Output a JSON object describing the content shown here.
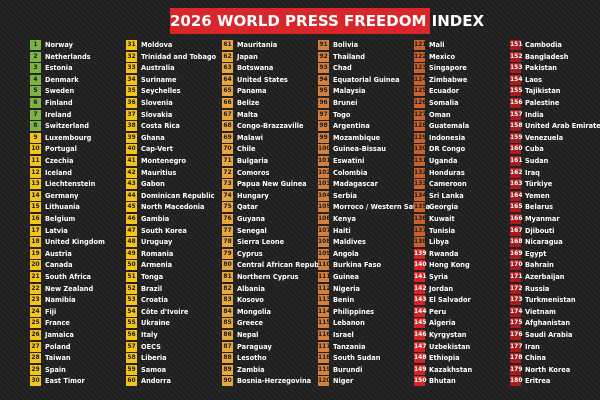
{
  "title": "2026 WORLD PRESS FREEDOM INDEX",
  "badge_colors": [
    {
      "from_rank": 1,
      "color": "#7cb342",
      "text": "#1a1a1a"
    },
    {
      "from_rank": 9,
      "color": "#f4c518",
      "text": "#1a1a1a"
    },
    {
      "from_rank": 61,
      "color": "#e9a53e",
      "text": "#1a1a1a"
    },
    {
      "from_rank": 91,
      "color": "#d5813c",
      "text": "#1a1a1a"
    },
    {
      "from_rank": 121,
      "color": "#c9622c",
      "text": "#1a1a1a"
    },
    {
      "from_rank": 139,
      "color": "#d42424",
      "text": "#ffffff"
    },
    {
      "from_rank": 151,
      "color": "#a81c1c",
      "text": "#ffffff"
    }
  ],
  "entries": [
    [
      1,
      "Norway"
    ],
    [
      2,
      "Netherlands"
    ],
    [
      3,
      "Estonia"
    ],
    [
      4,
      "Denmark"
    ],
    [
      5,
      "Sweden"
    ],
    [
      6,
      "Finland"
    ],
    [
      7,
      "Ireland"
    ],
    [
      8,
      "Switzerland"
    ],
    [
      9,
      "Luxembourg"
    ],
    [
      10,
      "Portugal"
    ],
    [
      11,
      "Czechia"
    ],
    [
      12,
      "Iceland"
    ],
    [
      13,
      "Liechtenstein"
    ],
    [
      14,
      "Germany"
    ],
    [
      15,
      "Lithuania"
    ],
    [
      16,
      "Belgium"
    ],
    [
      17,
      "Latvia"
    ],
    [
      18,
      "United Kingdom"
    ],
    [
      19,
      "Austria"
    ],
    [
      20,
      "Canada"
    ],
    [
      21,
      "South Africa"
    ],
    [
      22,
      "New Zealand"
    ],
    [
      23,
      "Namibia"
    ],
    [
      24,
      "Fiji"
    ],
    [
      25,
      "France"
    ],
    [
      26,
      "Jamaica"
    ],
    [
      27,
      "Poland"
    ],
    [
      28,
      "Taiwan"
    ],
    [
      29,
      "Spain"
    ],
    [
      30,
      "East Timor"
    ],
    [
      31,
      "Moldova"
    ],
    [
      32,
      "Trinidad and Tobago"
    ],
    [
      33,
      "Australia"
    ],
    [
      34,
      "Suriname"
    ],
    [
      35,
      "Seychelles"
    ],
    [
      36,
      "Slovenia"
    ],
    [
      37,
      "Slovakia"
    ],
    [
      38,
      "Costa Rica"
    ],
    [
      39,
      "Ghana"
    ],
    [
      40,
      "Cap-Vert"
    ],
    [
      41,
      "Montenegro"
    ],
    [
      42,
      "Mauritius"
    ],
    [
      43,
      "Gabon"
    ],
    [
      44,
      "Dominican Republic"
    ],
    [
      45,
      "North Macedonia"
    ],
    [
      46,
      "Gambia"
    ],
    [
      47,
      "South Korea"
    ],
    [
      48,
      "Uruguay"
    ],
    [
      49,
      "Romania"
    ],
    [
      50,
      "Armenia"
    ],
    [
      51,
      "Tonga"
    ],
    [
      52,
      "Brazil"
    ],
    [
      53,
      "Croatia"
    ],
    [
      54,
      "Côte d'Ivoire"
    ],
    [
      55,
      "Ukraine"
    ],
    [
      56,
      "Italy"
    ],
    [
      57,
      "OECS"
    ],
    [
      58,
      "Liberia"
    ],
    [
      59,
      "Samoa"
    ],
    [
      60,
      "Andorra"
    ],
    [
      61,
      "Mauritania"
    ],
    [
      62,
      "Japan"
    ],
    [
      63,
      "Botswana"
    ],
    [
      64,
      "United States"
    ],
    [
      65,
      "Panama"
    ],
    [
      66,
      "Belize"
    ],
    [
      67,
      "Malta"
    ],
    [
      68,
      "Congo-Brazzaville"
    ],
    [
      69,
      "Malawi"
    ],
    [
      70,
      "Chile"
    ],
    [
      71,
      "Bulgaria"
    ],
    [
      72,
      "Comoros"
    ],
    [
      73,
      "Papua New Guinea"
    ],
    [
      74,
      "Hungary"
    ],
    [
      75,
      "Qatar"
    ],
    [
      76,
      "Guyana"
    ],
    [
      77,
      "Senegal"
    ],
    [
      78,
      "Sierra Leone"
    ],
    [
      79,
      "Cyprus"
    ],
    [
      80,
      "Central African Republic"
    ],
    [
      81,
      "Northern Cyprus"
    ],
    [
      82,
      "Albania"
    ],
    [
      83,
      "Kosovo"
    ],
    [
      84,
      "Mongolia"
    ],
    [
      85,
      "Greece"
    ],
    [
      86,
      "Nepal"
    ],
    [
      87,
      "Paraguay"
    ],
    [
      88,
      "Lesotho"
    ],
    [
      89,
      "Zambia"
    ],
    [
      90,
      "Bosnia-Herzegovina"
    ],
    [
      91,
      "Bolivia"
    ],
    [
      92,
      "Thailand"
    ],
    [
      93,
      "Chad"
    ],
    [
      94,
      "Equatorial Guinea"
    ],
    [
      95,
      "Malaysia"
    ],
    [
      96,
      "Brunei"
    ],
    [
      97,
      "Togo"
    ],
    [
      98,
      "Argentina"
    ],
    [
      99,
      "Mozambique"
    ],
    [
      100,
      "Guinea-Bissau"
    ],
    [
      101,
      "Eswatini"
    ],
    [
      102,
      "Colombia"
    ],
    [
      103,
      "Madagascar"
    ],
    [
      104,
      "Serbia"
    ],
    [
      105,
      "Morroco / Western Sahara"
    ],
    [
      106,
      "Kenya"
    ],
    [
      107,
      "Haiti"
    ],
    [
      108,
      "Maldives"
    ],
    [
      109,
      "Angola"
    ],
    [
      110,
      "Burkina Faso"
    ],
    [
      111,
      "Guinea"
    ],
    [
      112,
      "Nigeria"
    ],
    [
      113,
      "Benin"
    ],
    [
      114,
      "Philippines"
    ],
    [
      115,
      "Lebanon"
    ],
    [
      116,
      "Israel"
    ],
    [
      117,
      "Tanzania"
    ],
    [
      118,
      "South Sudan"
    ],
    [
      119,
      "Burundi"
    ],
    [
      120,
      "Niger"
    ],
    [
      121,
      "Mali"
    ],
    [
      122,
      "Mexico"
    ],
    [
      123,
      "Singapore"
    ],
    [
      124,
      "Zimbabwe"
    ],
    [
      125,
      "Ecuador"
    ],
    [
      126,
      "Somalia"
    ],
    [
      127,
      "Oman"
    ],
    [
      128,
      "Guatemala"
    ],
    [
      129,
      "Indonesia"
    ],
    [
      130,
      "DR Congo"
    ],
    [
      131,
      "Uganda"
    ],
    [
      132,
      "Honduras"
    ],
    [
      133,
      "Cameroon"
    ],
    [
      134,
      "Sri Lanka"
    ],
    [
      135,
      "Georgia"
    ],
    [
      136,
      "Kuwait"
    ],
    [
      137,
      "Tunisia"
    ],
    [
      138,
      "Libya"
    ],
    [
      139,
      "Rwanda"
    ],
    [
      140,
      "Hong Kong"
    ],
    [
      141,
      "Syria"
    ],
    [
      142,
      "Jordan"
    ],
    [
      143,
      "El Salvador"
    ],
    [
      144,
      "Peru"
    ],
    [
      145,
      "Algeria"
    ],
    [
      146,
      "Kyrgystan"
    ],
    [
      147,
      "Uzbekistan"
    ],
    [
      148,
      "Ethiopia"
    ],
    [
      149,
      "Kazakhstan"
    ],
    [
      150,
      "Bhutan"
    ],
    [
      151,
      "Cambodia"
    ],
    [
      152,
      "Bangladesh"
    ],
    [
      153,
      "Pakistan"
    ],
    [
      154,
      "Laos"
    ],
    [
      155,
      "Tajikistan"
    ],
    [
      156,
      "Palestine"
    ],
    [
      157,
      "India"
    ],
    [
      158,
      "United Arab Emirates"
    ],
    [
      159,
      "Venezuela"
    ],
    [
      160,
      "Cuba"
    ],
    [
      161,
      "Sudan"
    ],
    [
      162,
      "Iraq"
    ],
    [
      163,
      "Türkiye"
    ],
    [
      164,
      "Yemen"
    ],
    [
      165,
      "Belarus"
    ],
    [
      166,
      "Myanmar"
    ],
    [
      167,
      "Djibouti"
    ],
    [
      168,
      "Nicaragua"
    ],
    [
      169,
      "Egypt"
    ],
    [
      170,
      "Bahrain"
    ],
    [
      171,
      "Azerbaijan"
    ],
    [
      172,
      "Russia"
    ],
    [
      173,
      "Turkmenistan"
    ],
    [
      174,
      "Vietnam"
    ],
    [
      175,
      "Afghanistan"
    ],
    [
      176,
      "Saudi Arabia"
    ],
    [
      177,
      "Iran"
    ],
    [
      178,
      "China"
    ],
    [
      179,
      "North Korea"
    ],
    [
      180,
      "Eritrea"
    ]
  ]
}
